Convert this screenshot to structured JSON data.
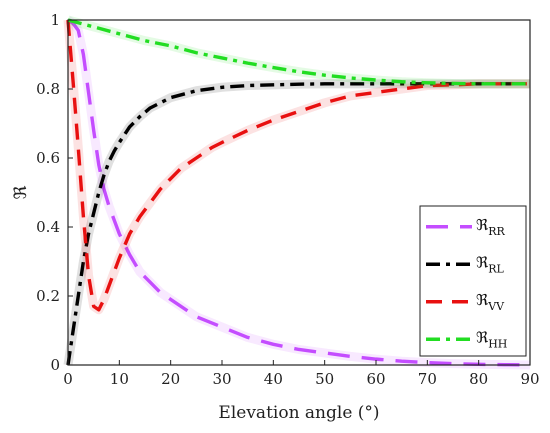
{
  "chart_data": {
    "type": "line",
    "xlabel": "Elevation angle (°)",
    "ylabel": "ℜ",
    "xlim": [
      0,
      90
    ],
    "ylim": [
      0,
      1
    ],
    "x_ticks": [
      0,
      10,
      20,
      30,
      40,
      50,
      60,
      70,
      80,
      90
    ],
    "y_ticks": [
      0,
      0.2,
      0.4,
      0.6,
      0.8,
      1
    ],
    "grid": false,
    "legend_position": "bottom-right",
    "series": [
      {
        "name": "ℜ_RR",
        "legend_main": "ℜ",
        "legend_sub": "RR",
        "color": "#c44dff",
        "dash": "long-dash",
        "x": [
          0,
          1,
          2,
          3,
          4,
          5,
          6,
          7,
          8,
          9,
          10,
          11,
          12,
          14,
          16,
          18,
          20,
          25,
          30,
          35,
          40,
          45,
          50,
          55,
          60,
          65,
          70,
          75,
          80,
          85,
          90
        ],
        "y": [
          1.0,
          0.99,
          0.97,
          0.9,
          0.79,
          0.68,
          0.58,
          0.51,
          0.46,
          0.42,
          0.38,
          0.35,
          0.32,
          0.27,
          0.24,
          0.21,
          0.19,
          0.14,
          0.11,
          0.08,
          0.06,
          0.045,
          0.035,
          0.025,
          0.017,
          0.011,
          0.007,
          0.004,
          0.002,
          0.001,
          0.0
        ]
      },
      {
        "name": "ℜ_RL",
        "legend_main": "ℜ",
        "legend_sub": "RL",
        "color": "#000000",
        "dash": "dash-dot",
        "x": [
          0,
          1,
          2,
          3,
          4,
          5,
          6,
          7,
          8,
          9,
          10,
          12,
          14,
          16,
          18,
          20,
          25,
          30,
          35,
          40,
          45,
          50,
          55,
          60,
          65,
          70,
          75,
          80,
          85,
          90
        ],
        "y": [
          0.0,
          0.1,
          0.2,
          0.3,
          0.38,
          0.44,
          0.5,
          0.55,
          0.59,
          0.62,
          0.645,
          0.69,
          0.72,
          0.745,
          0.76,
          0.775,
          0.795,
          0.805,
          0.81,
          0.812,
          0.814,
          0.815,
          0.815,
          0.815,
          0.815,
          0.815,
          0.815,
          0.815,
          0.815,
          0.815
        ]
      },
      {
        "name": "ℜ_VV",
        "legend_main": "ℜ",
        "legend_sub": "VV",
        "color": "#e81010",
        "dash": "dash",
        "x": [
          0,
          1,
          2,
          3,
          4,
          5,
          6,
          7,
          8,
          9,
          10,
          11,
          12,
          14,
          16,
          18,
          20,
          22,
          25,
          28,
          30,
          35,
          40,
          45,
          50,
          55,
          60,
          65,
          70,
          75,
          80,
          85,
          90
        ],
        "y": [
          1.0,
          0.82,
          0.63,
          0.43,
          0.26,
          0.17,
          0.16,
          0.19,
          0.23,
          0.27,
          0.31,
          0.345,
          0.38,
          0.43,
          0.47,
          0.51,
          0.54,
          0.57,
          0.6,
          0.63,
          0.645,
          0.68,
          0.71,
          0.735,
          0.76,
          0.78,
          0.79,
          0.8,
          0.81,
          0.812,
          0.815,
          0.815,
          0.815
        ]
      },
      {
        "name": "ℜ_HH",
        "legend_main": "ℜ",
        "legend_sub": "HH",
        "color": "#22dd22",
        "dash": "dash-dot",
        "x": [
          0,
          5,
          10,
          15,
          20,
          25,
          30,
          35,
          40,
          45,
          50,
          55,
          60,
          65,
          70,
          75,
          80,
          85,
          90
        ],
        "y": [
          1.0,
          0.98,
          0.96,
          0.94,
          0.925,
          0.905,
          0.89,
          0.875,
          0.862,
          0.85,
          0.84,
          0.832,
          0.826,
          0.821,
          0.818,
          0.816,
          0.815,
          0.815,
          0.815
        ]
      }
    ]
  }
}
